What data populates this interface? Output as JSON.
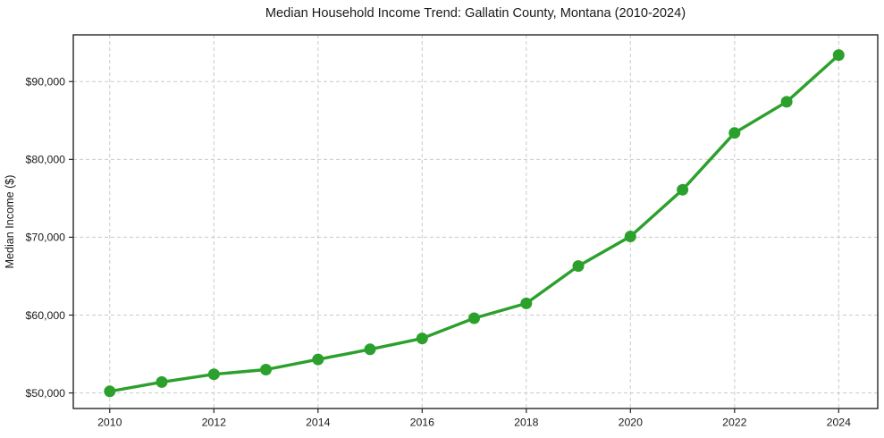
{
  "chart_data": {
    "type": "line",
    "title": "Median Household Income Trend: Gallatin County, Montana (2010-2024)",
    "xlabel": "",
    "ylabel": "Median Income ($)",
    "x": [
      2010,
      2011,
      2012,
      2013,
      2014,
      2015,
      2016,
      2017,
      2018,
      2019,
      2020,
      2021,
      2022,
      2023,
      2024
    ],
    "series": [
      {
        "name": "Median Household Income",
        "values": [
          50200,
          51400,
          52400,
          53000,
          54300,
          55600,
          57000,
          59600,
          61500,
          66300,
          70100,
          76100,
          83400,
          87400,
          93400
        ],
        "color": "#2ca02c"
      }
    ],
    "xticks": {
      "values": [
        2010,
        2012,
        2014,
        2016,
        2018,
        2020,
        2022,
        2024
      ],
      "labels": [
        "2010",
        "2012",
        "2014",
        "2016",
        "2018",
        "2020",
        "2022",
        "2024"
      ]
    },
    "yticks": {
      "values": [
        50000,
        60000,
        70000,
        80000,
        90000
      ],
      "labels": [
        "$50,000",
        "$60,000",
        "$70,000",
        "$80,000",
        "$90,000"
      ]
    },
    "xlim": [
      2009.3,
      2024.75
    ],
    "ylim": [
      48000,
      96000
    ],
    "grid": true,
    "grid_style": "dashed",
    "legend_position": "none"
  },
  "colors": {
    "line": "#2ca02c",
    "marker": "#2ca02c",
    "grid": "#c9c9c9",
    "spine": "#262626",
    "tick": "#262626",
    "text": "#1a1a1a",
    "background": "#ffffff"
  }
}
